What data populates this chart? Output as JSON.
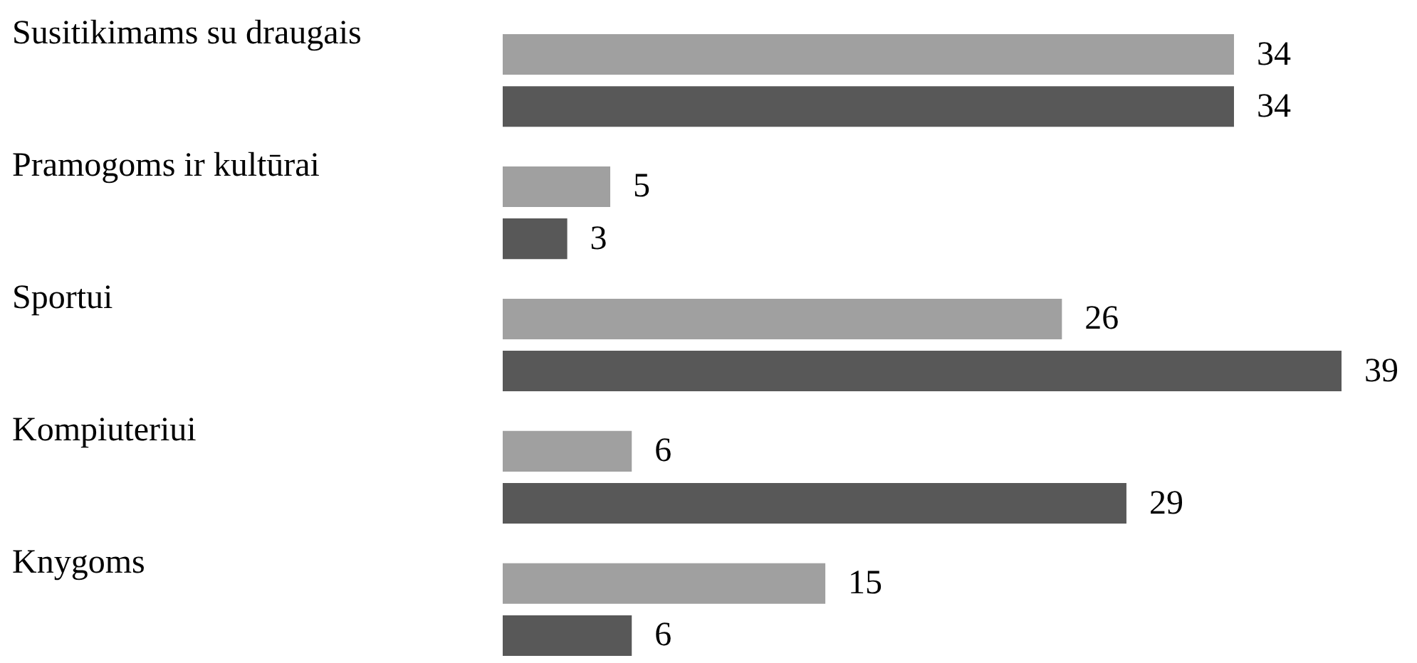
{
  "chart_data": {
    "type": "bar",
    "orientation": "horizontal",
    "categories": [
      "Susitikimams su draugais",
      "Pramogoms ir kultūrai",
      "Sportui",
      "Kompiuteriui",
      "Knygoms"
    ],
    "series": [
      {
        "color": "#a0a0a0",
        "values": [
          34,
          5,
          26,
          6,
          15
        ]
      },
      {
        "color": "#585858",
        "values": [
          34,
          3,
          39,
          29,
          6
        ]
      }
    ],
    "data_labels": true,
    "legend": false
  }
}
